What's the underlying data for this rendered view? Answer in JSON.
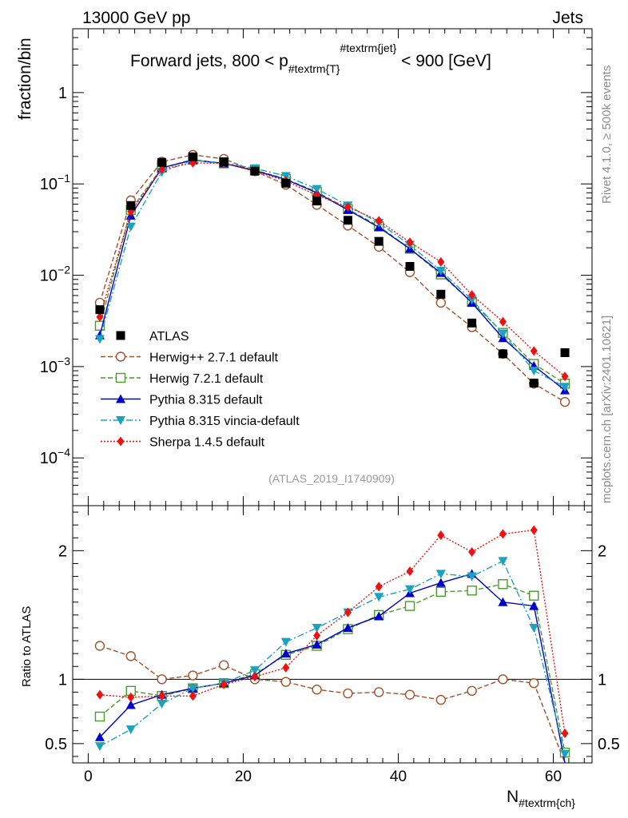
{
  "header": {
    "energy_label": "13000 GeV pp",
    "category_label": "Jets"
  },
  "side_labels": {
    "rivet": "Rivet 4.1.0, ≥ 500k events",
    "source": "mcplots.cern.ch [arXiv:2401.10621]"
  },
  "chart_data": {
    "type": "scatter",
    "title": "Forward jets, 800 < p",
    "title_sub": "#textrm{T}",
    "title_sup": "#textrm{jet}",
    "title_tail": " < 900 [GeV]",
    "analysis_id": "(ATLAS_2019_I1740909)",
    "xlabel_main": "N",
    "xlabel_sub": "#textrm{ch}",
    "ylabel": "fraction/bin",
    "ratio_ylabel": "Ratio to ATLAS",
    "xlim": [
      -2,
      65
    ],
    "ylim_log": [
      3e-05,
      5
    ],
    "ratio_ylim": [
      0.35,
      2.35
    ],
    "x_ticks": [
      {
        "value": 0,
        "label": "0"
      },
      {
        "value": 20,
        "label": "20"
      },
      {
        "value": 40,
        "label": "40"
      },
      {
        "value": 60,
        "label": "60"
      }
    ],
    "y_ticks": [
      {
        "value": 1,
        "base": "1",
        "exp": ""
      },
      {
        "value": 0.1,
        "base": "10",
        "exp": "−1"
      },
      {
        "value": 0.01,
        "base": "10",
        "exp": "−2"
      },
      {
        "value": 0.001,
        "base": "10",
        "exp": "−3"
      },
      {
        "value": 0.0001,
        "base": "10",
        "exp": "−4"
      }
    ],
    "ratio_ticks": [
      {
        "value": 0.5,
        "label": "0.5"
      },
      {
        "value": 1,
        "label": "1"
      },
      {
        "value": 2,
        "label": "2"
      }
    ],
    "x": [
      1.5,
      5.5,
      9.5,
      13.5,
      17.5,
      21.5,
      25.5,
      29.5,
      33.5,
      37.5,
      41.5,
      45.5,
      49.5,
      53.5,
      57.5,
      61.5
    ],
    "data": {
      "name": "ATLAS",
      "values": [
        0.0042,
        0.058,
        0.172,
        0.198,
        0.175,
        0.138,
        0.102,
        0.065,
        0.04,
        0.0235,
        0.0125,
        0.0062,
        0.003,
        0.00138,
        0.00066,
        0.00142
      ]
    },
    "series": [
      {
        "name": "Herwig++ 2.7.1 default",
        "color": "#a0522d",
        "marker": "circle-open",
        "dash": "6,3",
        "values": [
          0.005,
          0.066,
          0.175,
          0.208,
          0.188,
          0.138,
          0.098,
          0.059,
          0.035,
          0.0205,
          0.0108,
          0.005,
          0.0027,
          0.00138,
          0.00065,
          0.00041
        ],
        "ratio": [
          1.26,
          1.18,
          1.0,
          1.03,
          1.11,
          1.0,
          0.98,
          0.92,
          0.89,
          0.9,
          0.88,
          0.84,
          0.91,
          1.0,
          0.97,
          0.23
        ]
      },
      {
        "name": "Herwig 7.2.1 default",
        "color": "#4c9a2a",
        "marker": "square-open",
        "dash": "6,3",
        "values": [
          0.0028,
          0.052,
          0.15,
          0.185,
          0.168,
          0.142,
          0.113,
          0.082,
          0.053,
          0.0345,
          0.0195,
          0.0102,
          0.0051,
          0.00234,
          0.00107,
          0.00065
        ],
        "ratio": [
          0.71,
          0.91,
          0.87,
          0.93,
          0.97,
          1.04,
          1.19,
          1.26,
          1.39,
          1.5,
          1.57,
          1.68,
          1.69,
          1.74,
          1.65,
          0.43
        ]
      },
      {
        "name": "Pythia 8.315 default",
        "color": "#0000cc",
        "marker": "triangle-up",
        "dash": "",
        "values": [
          0.0022,
          0.045,
          0.15,
          0.182,
          0.168,
          0.14,
          0.112,
          0.08,
          0.052,
          0.0335,
          0.0195,
          0.0106,
          0.005,
          0.00205,
          0.00102,
          0.00055
        ],
        "ratio": [
          0.55,
          0.8,
          0.88,
          0.93,
          0.97,
          1.03,
          1.2,
          1.27,
          1.4,
          1.49,
          1.67,
          1.75,
          1.82,
          1.6,
          1.57,
          0.33
        ]
      },
      {
        "name": "Pythia 8.315 vincia-default",
        "color": "#1aa3bf",
        "marker": "triangle-down",
        "dash": "8,3,2,3",
        "values": [
          0.002,
          0.034,
          0.135,
          0.182,
          0.17,
          0.148,
          0.122,
          0.088,
          0.058,
          0.0375,
          0.0215,
          0.0112,
          0.0054,
          0.0023,
          0.0009,
          0.0006
        ],
        "ratio": [
          0.48,
          0.61,
          0.81,
          0.93,
          0.97,
          1.07,
          1.29,
          1.4,
          1.52,
          1.64,
          1.7,
          1.82,
          1.8,
          1.92,
          1.4,
          0.42
        ]
      },
      {
        "name": "Sherpa 1.4.5 default",
        "color": "#ee1111",
        "marker": "diamond",
        "dash": "2,2",
        "values": [
          0.0035,
          0.05,
          0.145,
          0.17,
          0.168,
          0.138,
          0.108,
          0.075,
          0.056,
          0.0395,
          0.023,
          0.014,
          0.0061,
          0.0031,
          0.00148,
          0.00078
        ],
        "ratio": [
          0.88,
          0.86,
          0.87,
          0.87,
          0.96,
          1.02,
          1.09,
          1.34,
          1.52,
          1.72,
          1.84,
          2.12,
          1.99,
          2.13,
          2.16,
          0.58
        ]
      }
    ]
  }
}
